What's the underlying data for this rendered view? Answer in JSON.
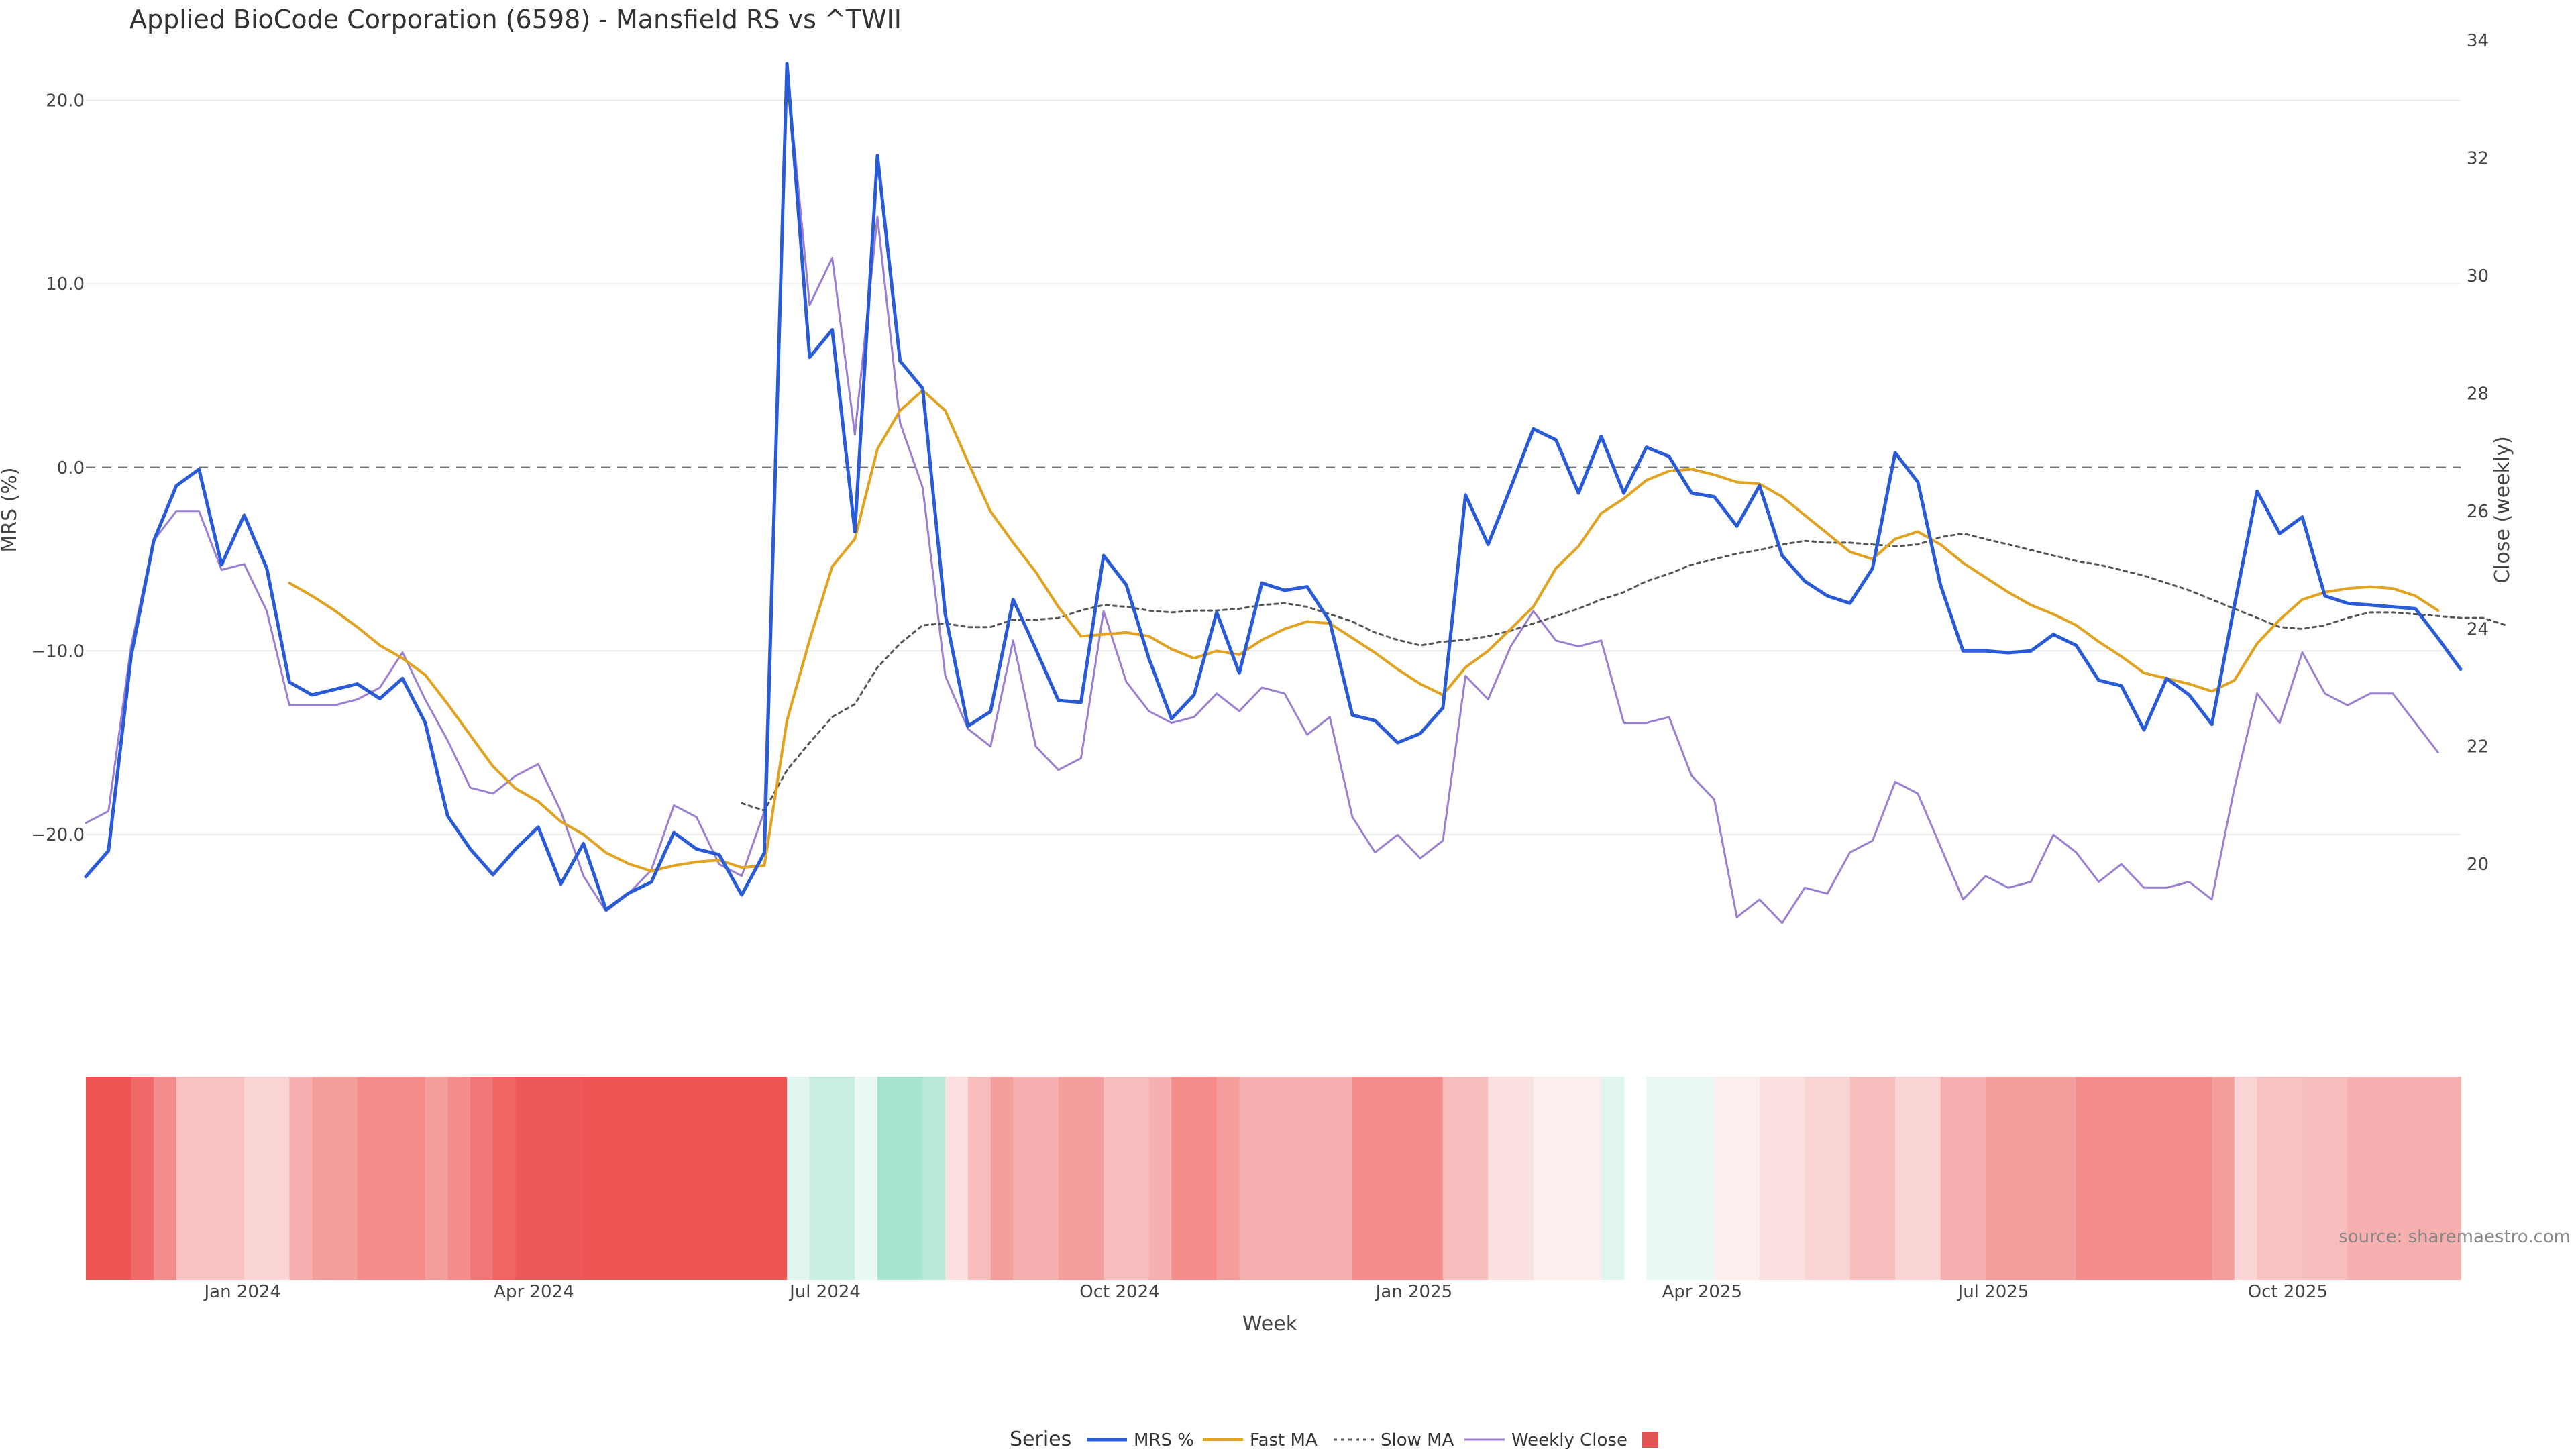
{
  "chart_data": {
    "type": "line",
    "title": "Applied BioCode Corporation (6598) - Mansfield RS vs ^TWII",
    "xlabel": "Week",
    "ylabel_left": "MRS (%)",
    "ylabel_right": "Close (weekly)",
    "source": "source: sharemaestro.com",
    "x_start": "2023-11-13",
    "x_end": "2025-11-24",
    "x_ticks": [
      {
        "date": "2024-01-01",
        "label": "Jan 2024"
      },
      {
        "date": "2024-04-01",
        "label": "Apr 2024"
      },
      {
        "date": "2024-07-01",
        "label": "Jul 2024"
      },
      {
        "date": "2024-10-01",
        "label": "Oct 2024"
      },
      {
        "date": "2025-01-01",
        "label": "Jan 2025"
      },
      {
        "date": "2025-04-01",
        "label": "Apr 2025"
      },
      {
        "date": "2025-07-01",
        "label": "Jul 2025"
      },
      {
        "date": "2025-10-01",
        "label": "Oct 2025"
      }
    ],
    "y_left": {
      "range": [
        -29,
        22
      ],
      "ticks": [
        20,
        10,
        0,
        -10,
        -20
      ],
      "tick_labels": [
        "20.0",
        "10.0",
        "0.0",
        "−10.0",
        "−20.0"
      ],
      "zero_line": 0
    },
    "y_right": {
      "range": [
        17.7,
        33.6
      ],
      "ticks": [
        20,
        22,
        24,
        26,
        28,
        30,
        32,
        34
      ],
      "tick_labels": [
        "20",
        "22",
        "24",
        "26",
        "28",
        "30",
        "32",
        "34"
      ]
    },
    "legend": {
      "title": "Series",
      "items": [
        {
          "name": "MRS %",
          "color": "#2a5bd7",
          "style": "solid"
        },
        {
          "name": "Fast MA",
          "color": "#e0a21f",
          "style": "solid"
        },
        {
          "name": "Slow MA",
          "color": "#555555",
          "style": "dotted"
        },
        {
          "name": "Weekly Close",
          "color": "#9b7fd0",
          "style": "solid"
        },
        {
          "name": "",
          "color": "#e05353",
          "style": "square"
        }
      ]
    },
    "heat_gap_index": 68,
    "series": [
      {
        "name": "MRS %",
        "axis": "left",
        "values": [
          -22.3,
          -20.9,
          -10.3,
          -4.0,
          -1.0,
          -0.1,
          -5.3,
          -2.6,
          -5.5,
          -11.7,
          -12.4,
          -12.1,
          -11.8,
          -12.6,
          -11.5,
          -13.9,
          -19.0,
          -20.8,
          -22.2,
          -20.8,
          -19.6,
          -22.7,
          -20.5,
          -24.1,
          -23.2,
          -22.6,
          -19.9,
          -20.8,
          -21.1,
          -23.3,
          -21.0,
          22.0,
          6.0,
          7.5,
          -3.5,
          17.0,
          5.8,
          4.3,
          -8.0,
          -14.1,
          -13.3,
          -7.2,
          -9.9,
          -12.7,
          -12.8,
          -4.8,
          -6.4,
          -10.4,
          -13.7,
          -12.4,
          -7.9,
          -11.2,
          -6.3,
          -6.7,
          -6.5,
          -8.4,
          -13.5,
          -13.8,
          -15.0,
          -14.5,
          -13.1,
          -1.5,
          -4.2,
          -1.1,
          2.1,
          1.5,
          -1.4,
          1.7,
          -1.4,
          1.1,
          0.6,
          -1.4,
          -1.6,
          -3.2,
          -1.0,
          -4.8,
          -6.2,
          -7.0,
          -7.4,
          -5.5,
          0.8,
          -0.8,
          -6.4,
          -10.0,
          -10.0,
          -10.1,
          -10.0,
          -9.1,
          -9.7,
          -11.6,
          -11.9,
          -14.3,
          -11.5,
          -12.4,
          -14.0,
          -7.5,
          -1.3,
          -3.6,
          -2.7,
          -7.0,
          -7.4,
          -7.5,
          -7.6,
          -7.7,
          -9.3,
          -11.0
        ]
      },
      {
        "name": "Fast MA",
        "axis": "left",
        "start_index": 9,
        "values": [
          -6.3,
          -7.0,
          -7.8,
          -8.7,
          -9.7,
          -10.4,
          -11.3,
          -12.9,
          -14.6,
          -16.3,
          -17.5,
          -18.2,
          -19.3,
          -20.0,
          -21.0,
          -21.6,
          -22.0,
          -21.7,
          -21.5,
          -21.4,
          -21.8,
          -21.7,
          -13.8,
          -9.4,
          -5.4,
          -3.9,
          1.0,
          3.1,
          4.2,
          3.1,
          0.3,
          -2.4,
          -4.1,
          -5.7,
          -7.6,
          -9.2,
          -9.1,
          -9.0,
          -9.2,
          -9.9,
          -10.4,
          -10.0,
          -10.2,
          -9.4,
          -8.8,
          -8.4,
          -8.5,
          -9.3,
          -10.1,
          -11.0,
          -11.8,
          -12.4,
          -10.9,
          -10.0,
          -8.8,
          -7.6,
          -5.5,
          -4.3,
          -2.5,
          -1.7,
          -0.7,
          -0.2,
          -0.1,
          -0.4,
          -0.8,
          -0.9,
          -1.6,
          -2.6,
          -3.6,
          -4.6,
          -5.0,
          -3.9,
          -3.5,
          -4.2,
          -5.2,
          -6.0,
          -6.8,
          -7.5,
          -8.0,
          -8.6,
          -9.5,
          -10.3,
          -11.2,
          -11.5,
          -11.8,
          -12.2,
          -11.6,
          -9.6,
          -8.3,
          -7.2,
          -6.8,
          -6.6,
          -6.5,
          -6.6,
          -7.0,
          -7.8
        ]
      },
      {
        "name": "Slow MA",
        "axis": "left",
        "start_index": 29,
        "values": [
          -18.3,
          -18.7,
          -16.5,
          -15.0,
          -13.6,
          -12.9,
          -10.9,
          -9.6,
          -8.6,
          -8.5,
          -8.7,
          -8.7,
          -8.3,
          -8.3,
          -8.2,
          -7.8,
          -7.5,
          -7.6,
          -7.8,
          -7.9,
          -7.8,
          -7.8,
          -7.7,
          -7.5,
          -7.4,
          -7.6,
          -8.0,
          -8.4,
          -9.0,
          -9.4,
          -9.7,
          -9.5,
          -9.4,
          -9.2,
          -8.9,
          -8.5,
          -8.1,
          -7.7,
          -7.2,
          -6.8,
          -6.2,
          -5.8,
          -5.3,
          -5.0,
          -4.7,
          -4.5,
          -4.2,
          -4.0,
          -4.1,
          -4.1,
          -4.2,
          -4.3,
          -4.2,
          -3.8,
          -3.6,
          -3.9,
          -4.2,
          -4.5,
          -4.8,
          -5.1,
          -5.3,
          -5.6,
          -5.9,
          -6.3,
          -6.7,
          -7.2,
          -7.7,
          -8.2,
          -8.7,
          -8.8,
          -8.6,
          -8.2,
          -7.9,
          -7.9,
          -8.0,
          -8.1,
          -8.2,
          -8.2,
          -8.6
        ]
      },
      {
        "name": "Weekly Close",
        "axis": "right",
        "values": [
          20.7,
          20.9,
          23.7,
          25.5,
          26.0,
          26.0,
          25.0,
          25.1,
          24.3,
          22.7,
          22.7,
          22.7,
          22.8,
          23.0,
          23.6,
          22.8,
          22.1,
          21.3,
          21.2,
          21.5,
          21.7,
          20.9,
          19.8,
          19.2,
          19.5,
          19.9,
          21.0,
          20.8,
          20.0,
          19.8,
          20.9,
          33.5,
          29.5,
          30.3,
          27.3,
          31.0,
          27.5,
          26.4,
          23.2,
          22.3,
          22.0,
          23.8,
          22.0,
          21.6,
          21.8,
          24.3,
          23.1,
          22.6,
          22.4,
          22.5,
          22.9,
          22.6,
          23.0,
          22.9,
          22.2,
          22.5,
          20.8,
          20.2,
          20.5,
          20.1,
          20.4,
          23.2,
          22.8,
          23.7,
          24.3,
          23.8,
          23.7,
          23.8,
          22.4,
          22.4,
          22.5,
          21.5,
          21.1,
          19.1,
          19.4,
          19.0,
          19.6,
          19.5,
          20.2,
          20.4,
          21.4,
          21.2,
          20.3,
          19.4,
          19.8,
          19.6,
          19.7,
          20.5,
          20.2,
          19.7,
          20.0,
          19.6,
          19.6,
          19.7,
          19.4,
          21.3,
          22.9,
          22.4,
          23.6,
          22.9,
          22.7,
          22.9,
          22.9,
          22.4,
          21.9
        ]
      }
    ],
    "heat_colors": [
      "#ef5555",
      "#ef5555",
      "#f06a6a",
      "#f28c8c",
      "#f8c2c2",
      "#f8c2c2",
      "#f8c2c2",
      "#fad4d4",
      "#fad4d4",
      "#f6b0b0",
      "#f59e9e",
      "#f59e9e",
      "#f48c8c",
      "#f48c8c",
      "#f48c8c",
      "#f59e9e",
      "#f48c8c",
      "#f27878",
      "#f06464",
      "#ef5858",
      "#ef5858",
      "#ef5858",
      "#ef5555",
      "#ef5555",
      "#ef5555",
      "#ef5555",
      "#ef5555",
      "#ef5555",
      "#ef5555",
      "#ef5555",
      "#ef5555",
      "#dff5ee",
      "#c8eedf",
      "#c8eedf",
      "#eaf8f3",
      "#a6e4cf",
      "#a6e4cf",
      "#b8ead7",
      "#fbe0e0",
      "#f7bdbd",
      "#f59e9e",
      "#f6b0b0",
      "#f6b0b0",
      "#f59e9e",
      "#f59e9e",
      "#f7bdbd",
      "#f7bdbd",
      "#f6b0b0",
      "#f48c8c",
      "#f48c8c",
      "#f59e9e",
      "#f6b0b0",
      "#f6b0b0",
      "#f6b0b0",
      "#f6b0b0",
      "#f6b0b0",
      "#f48c8c",
      "#f48c8c",
      "#f48c8c",
      "#f48c8c",
      "#f7bdbd",
      "#f7bdbd",
      "#fbe0e0",
      "#fbe0e0",
      "#fdeeee",
      "#fdeeee",
      "#fdeeee",
      "#dff5ee",
      "#fbe0e0",
      "#eaf8f3",
      "#eaf8f3",
      "#eaf8f3",
      "#fdeeee",
      "#fdeeee",
      "#fbe0e0",
      "#fbe0e0",
      "#fad4d4",
      "#fad4d4",
      "#f7bdbd",
      "#f7bdbd",
      "#fad4d4",
      "#fad4d4",
      "#f6b0b0",
      "#f6b0b0",
      "#f59e9e",
      "#f59e9e",
      "#f59e9e",
      "#f59e9e",
      "#f48c8c",
      "#f48c8c",
      "#f48c8c",
      "#f48c8c",
      "#f48c8c",
      "#f48c8c",
      "#f59e9e",
      "#fad4d4",
      "#f8c2c2",
      "#f8c2c2",
      "#f7bdbd",
      "#f7bdbd",
      "#f6b0b0",
      "#f6b0b0",
      "#f6b0b0",
      "#f6b0b0",
      "#f6b0b0"
    ]
  }
}
